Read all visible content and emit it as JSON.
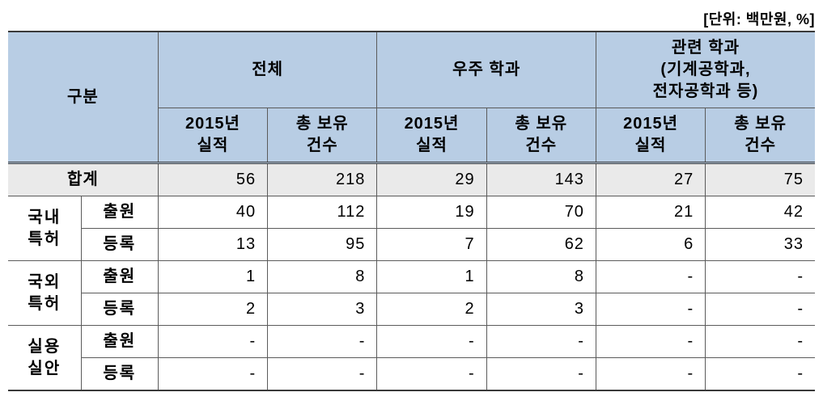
{
  "unit_label": "[단위: 백만원, %]",
  "headers": {
    "category": "구분",
    "groups": [
      {
        "top": "전체",
        "sub1": "2015년\n실적",
        "sub2": "총 보유\n건수"
      },
      {
        "top": "우주 학과",
        "sub1": "2015년\n실적",
        "sub2": "총 보유\n건수"
      },
      {
        "top": "관련 학과\n(기계공학과,\n전자공학과 등)",
        "sub1": "2015년\n실적",
        "sub2": "총 보유\n건수"
      }
    ]
  },
  "summary": {
    "label": "합계",
    "values": [
      "56",
      "218",
      "29",
      "143",
      "27",
      "75"
    ]
  },
  "row_groups": [
    {
      "label": "국내\n특허",
      "rows": [
        {
          "label": "출원",
          "values": [
            "40",
            "112",
            "19",
            "70",
            "21",
            "42"
          ]
        },
        {
          "label": "등록",
          "values": [
            "13",
            "95",
            "7",
            "62",
            "6",
            "33"
          ]
        }
      ]
    },
    {
      "label": "국외\n특허",
      "rows": [
        {
          "label": "출원",
          "values": [
            "1",
            "8",
            "1",
            "8",
            "-",
            "-"
          ]
        },
        {
          "label": "등록",
          "values": [
            "2",
            "3",
            "2",
            "3",
            "-",
            "-"
          ]
        }
      ]
    },
    {
      "label": "실용\n실안",
      "rows": [
        {
          "label": "출원",
          "values": [
            "-",
            "-",
            "-",
            "-",
            "-",
            "-"
          ]
        },
        {
          "label": "등록",
          "values": [
            "-",
            "-",
            "-",
            "-",
            "-",
            "-"
          ]
        }
      ]
    }
  ],
  "colors": {
    "header_bg": "#b8cde4",
    "summary_bg": "#eaeaea",
    "border": "#5b5b5b",
    "heavy_border": "#3a3a3a",
    "background": "#ffffff"
  }
}
